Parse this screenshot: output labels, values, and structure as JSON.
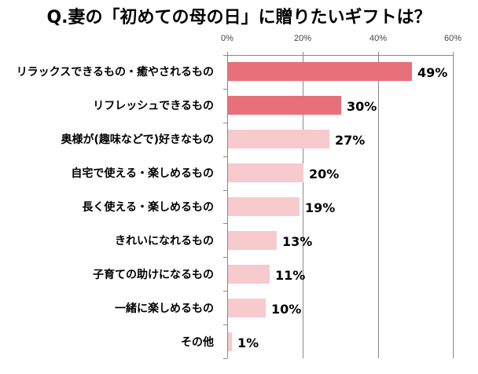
{
  "chart_data": {
    "type": "bar",
    "orientation": "horizontal",
    "title": "Q.妻の「初めての母の日」に贈りたいギフトは？",
    "xlabel": "",
    "ylabel": "",
    "xlim": [
      0,
      60
    ],
    "x_ticks": [
      "0%",
      "20%",
      "40%",
      "60%"
    ],
    "grid": true,
    "legend": null,
    "categories": [
      "リラックスできるもの・癒やされるもの",
      "リフレッシュできるもの",
      "奥様が(趣味などで)好きなもの",
      "自宅で使える・楽しめるもの",
      "長く使える・楽しめるもの",
      "きれいになれるもの",
      "子育ての助けになるもの",
      "一緒に楽しめるもの",
      "その他"
    ],
    "values": [
      49,
      30,
      27,
      20,
      19,
      13,
      11,
      10,
      1
    ],
    "value_labels": [
      "49%",
      "30%",
      "27%",
      "20%",
      "19%",
      "13%",
      "11%",
      "10%",
      "1%"
    ],
    "colors": {
      "highlight": "#E8707A",
      "normal": "#F7CACD"
    },
    "highlighted_indices": [
      0,
      1
    ]
  }
}
